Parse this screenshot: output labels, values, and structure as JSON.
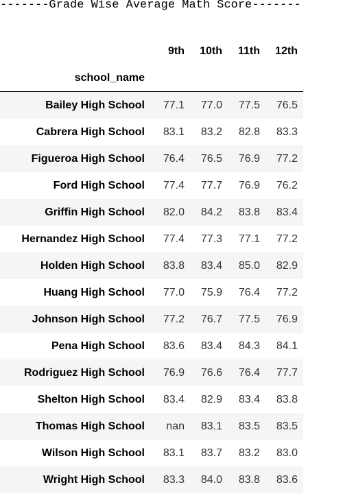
{
  "banner": "-------Grade Wise Average Math Score-------",
  "table": {
    "index_name": "school_name",
    "columns": [
      "9th",
      "10th",
      "11th",
      "12th"
    ],
    "rows": [
      {
        "school": "Bailey High School",
        "values": [
          "77.1",
          "77.0",
          "77.5",
          "76.5"
        ]
      },
      {
        "school": "Cabrera High School",
        "values": [
          "83.1",
          "83.2",
          "82.8",
          "83.3"
        ]
      },
      {
        "school": "Figueroa High School",
        "values": [
          "76.4",
          "76.5",
          "76.9",
          "77.2"
        ]
      },
      {
        "school": "Ford High School",
        "values": [
          "77.4",
          "77.7",
          "76.9",
          "76.2"
        ]
      },
      {
        "school": "Griffin High School",
        "values": [
          "82.0",
          "84.2",
          "83.8",
          "83.4"
        ]
      },
      {
        "school": "Hernandez High School",
        "values": [
          "77.4",
          "77.3",
          "77.1",
          "77.2"
        ]
      },
      {
        "school": "Holden High School",
        "values": [
          "83.8",
          "83.4",
          "85.0",
          "82.9"
        ]
      },
      {
        "school": "Huang High School",
        "values": [
          "77.0",
          "75.9",
          "76.4",
          "77.2"
        ]
      },
      {
        "school": "Johnson High School",
        "values": [
          "77.2",
          "76.7",
          "77.5",
          "76.9"
        ]
      },
      {
        "school": "Pena High School",
        "values": [
          "83.6",
          "83.4",
          "84.3",
          "84.1"
        ]
      },
      {
        "school": "Rodriguez High School",
        "values": [
          "76.9",
          "76.6",
          "76.4",
          "77.7"
        ]
      },
      {
        "school": "Shelton High School",
        "values": [
          "83.4",
          "82.9",
          "83.4",
          "83.8"
        ]
      },
      {
        "school": "Thomas High School",
        "values": [
          "nan",
          "83.1",
          "83.5",
          "83.5"
        ]
      },
      {
        "school": "Wilson High School",
        "values": [
          "83.1",
          "83.7",
          "83.2",
          "83.0"
        ]
      },
      {
        "school": "Wright High School",
        "values": [
          "83.3",
          "84.0",
          "83.8",
          "83.6"
        ]
      }
    ]
  }
}
